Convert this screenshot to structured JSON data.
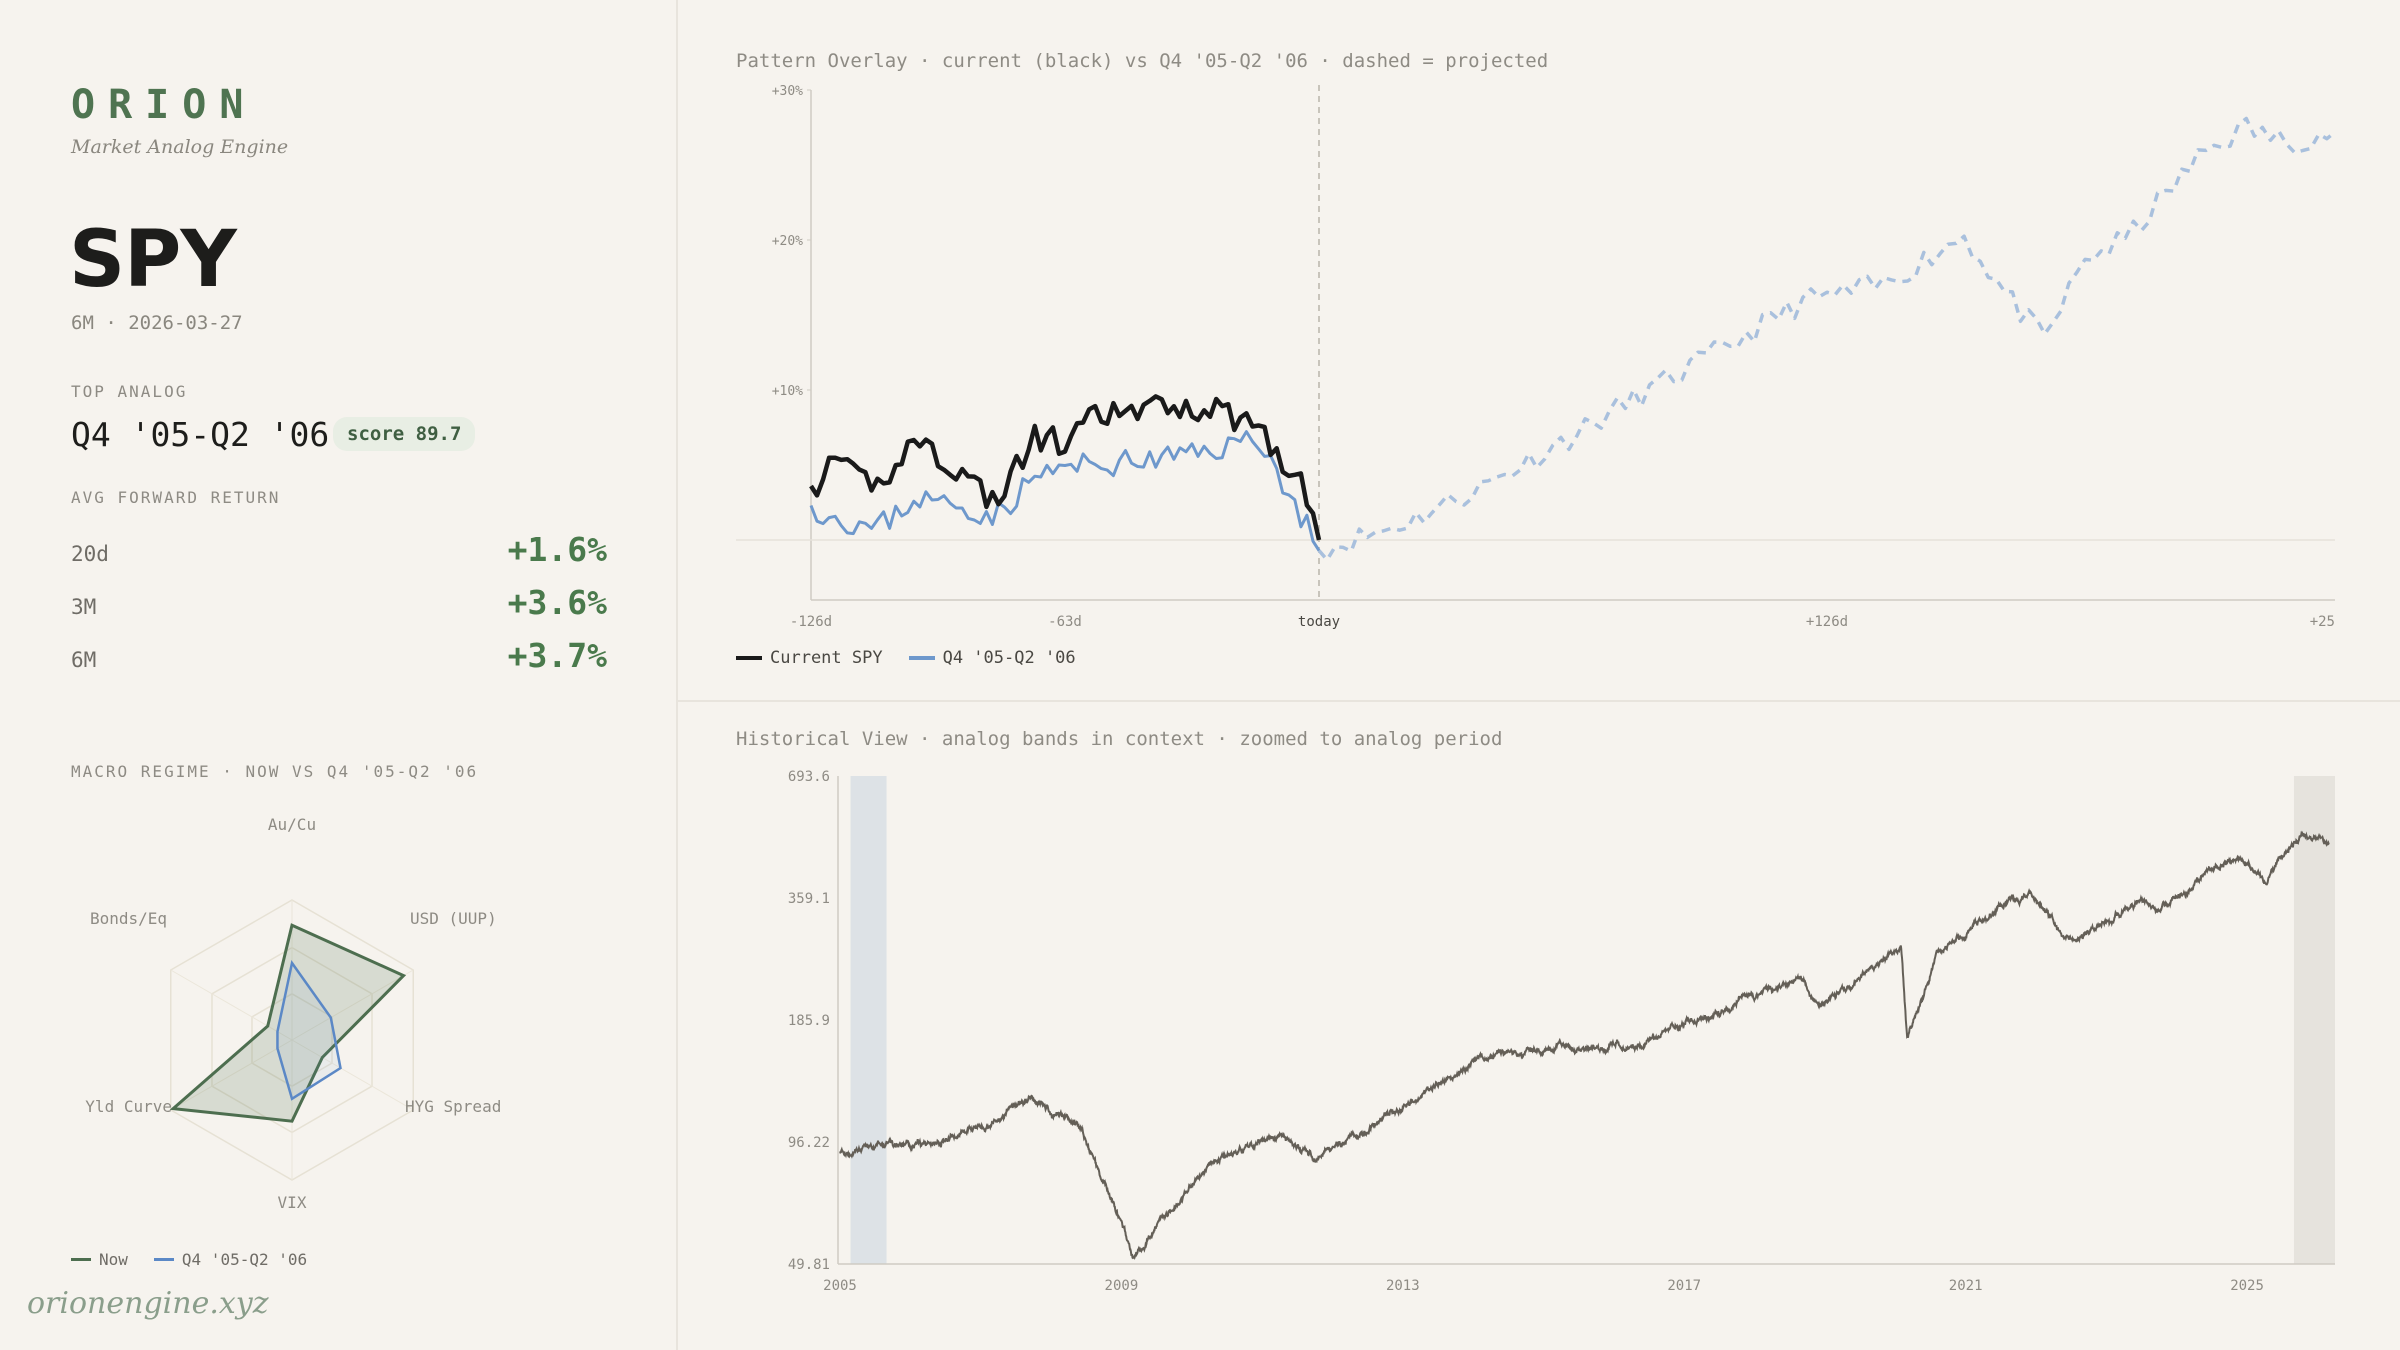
{
  "brand": {
    "name": "ORION",
    "tagline": "Market Analog Engine",
    "url": "orionengine.xyz"
  },
  "ticker": {
    "symbol": "SPY",
    "meta": "6M · 2026-03-27"
  },
  "top_analog": {
    "label": "TOP ANALOG",
    "name": "Q4 '05-Q2 '06",
    "score": "score 89.7"
  },
  "forward_returns": {
    "label": "AVG FORWARD RETURN",
    "rows": [
      {
        "horizon": "20d",
        "value": "+1.6%"
      },
      {
        "horizon": "3M",
        "value": "+3.6%"
      },
      {
        "horizon": "6M",
        "value": "+3.7%"
      }
    ]
  },
  "macro": {
    "label": "MACRO REGIME · NOW VS Q4 '05-Q2 '06",
    "axes": [
      "Au/Cu",
      "USD (UUP)",
      "HYG Spread",
      "VIX",
      "Yld Curve",
      "Bonds/Eq"
    ],
    "now_values": [
      0.82,
      0.92,
      0.25,
      0.58,
      0.98,
      0.2
    ],
    "analog_values": [
      0.55,
      0.32,
      0.4,
      0.42,
      0.12,
      0.12
    ],
    "legend": [
      "Now",
      "Q4 '05-Q2 '06"
    ],
    "colors": {
      "now": "#4d6e4f",
      "analog": "#5b88c6"
    }
  },
  "overlay": {
    "title": "Pattern Overlay · current (black) vs Q4 '05-Q2 '06 · dashed = projected",
    "y_ticks": [
      "+30%",
      "+20%",
      "+10%"
    ],
    "x_ticks": [
      "-126d",
      "-63d",
      "today",
      "+126d",
      "+25"
    ],
    "legend": [
      "Current SPY",
      "Q4 '05-Q2 '06"
    ],
    "colors": {
      "current": "#1a1a1a",
      "analog": "#6e98cc",
      "projected": "#a9c0dd"
    }
  },
  "chart_data": [
    {
      "type": "line",
      "title": "Pattern Overlay · current (black) vs Q4 '05-Q2 '06 · dashed = projected",
      "xlabel": "",
      "ylabel": "",
      "xlim": [
        -126,
        252
      ],
      "ylim": [
        -4,
        30
      ],
      "series": [
        {
          "name": "Current SPY",
          "x": [
            -126,
            -120,
            -110,
            -100,
            -90,
            -80,
            -70,
            -63,
            -55,
            -45,
            -35,
            -25,
            -15,
            -8,
            -3,
            0
          ],
          "values": [
            3.6,
            4.9,
            3.5,
            6.8,
            4.7,
            2.5,
            7.0,
            6.3,
            8.3,
            8.5,
            9.0,
            8.6,
            7.7,
            5.0,
            3.0,
            0.0
          ]
        },
        {
          "name": "Q4 '05-Q2 '06",
          "x": [
            -126,
            -120,
            -110,
            -100,
            -90,
            -80,
            -70,
            -63,
            -55,
            -45,
            -35,
            -25,
            -15,
            -8,
            -3,
            0
          ],
          "values": [
            2.3,
            1.5,
            0.7,
            2.8,
            2.3,
            1.6,
            4.3,
            4.8,
            5.0,
            5.2,
            5.6,
            6.1,
            6.9,
            3.2,
            1.0,
            -0.7
          ]
        },
        {
          "name": "projected",
          "dashed": true,
          "x": [
            0,
            20,
            40,
            60,
            80,
            100,
            120,
            140,
            160,
            170,
            180,
            190,
            200,
            210,
            220,
            230,
            240,
            252
          ],
          "values": [
            -0.7,
            1.0,
            3.5,
            6.5,
            9.7,
            12.7,
            15.9,
            17.0,
            20.3,
            16.5,
            13.3,
            18.7,
            20.0,
            23.0,
            26.0,
            27.5,
            26.5,
            27.2
          ]
        }
      ]
    },
    {
      "type": "line",
      "title": "Historical View · analog bands in context · zoomed to analog period",
      "xlabel": "",
      "ylabel": "",
      "log_scale": true,
      "ylim": [
        49.81,
        693.6
      ],
      "y_ticks": [
        "693.6",
        "359.1",
        "185.9",
        "96.22",
        "49.81"
      ],
      "x_ticks": [
        "2005",
        "2009",
        "2013",
        "2017",
        "2021",
        "2025"
      ],
      "highlight_bands": [
        [
          "2005-08",
          "2006-06"
        ],
        [
          "2025-09",
          "2026-03"
        ]
      ],
      "series": [
        {
          "name": "SPY",
          "x": [
            "2005-01",
            "2006-06",
            "2007-10",
            "2008-06",
            "2008-11",
            "2009-03",
            "2010-04",
            "2011-04",
            "2011-10",
            "2012-09",
            "2013-12",
            "2014-12",
            "2015-08",
            "2016-06",
            "2017-12",
            "2018-02",
            "2018-09",
            "2018-12",
            "2019-12",
            "2020-02",
            "2020-03",
            "2020-08",
            "2021-06",
            "2021-12",
            "2022-06",
            "2022-10",
            "2023-07",
            "2023-10",
            "2024-07",
            "2024-12",
            "2025-04",
            "2025-10",
            "2026-03"
          ],
          "values": [
            92,
            95,
            120,
            104,
            72,
            52,
            85,
            101,
            88,
            108,
            145,
            160,
            160,
            164,
            212,
            215,
            235,
            200,
            262,
            272,
            167,
            265,
            335,
            370,
            290,
            293,
            360,
            334,
            420,
            450,
            390,
            500,
            490
          ]
        }
      ]
    }
  ]
}
